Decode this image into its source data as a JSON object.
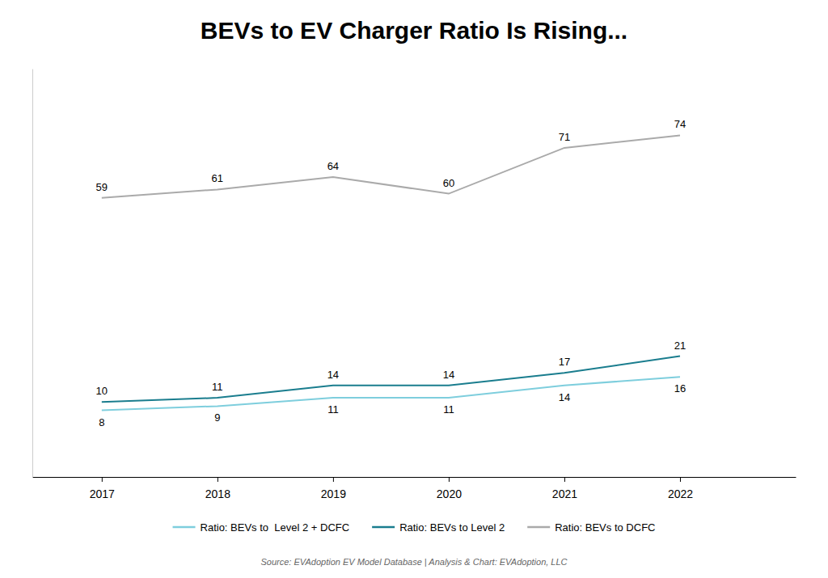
{
  "chart_data": {
    "type": "line",
    "title": "BEVs to EV Charger Ratio Is Rising...",
    "x": [
      2017,
      2018,
      2019,
      2020,
      2021,
      2022
    ],
    "series": [
      {
        "name": "Ratio: BEVs to DCFC",
        "color": "#aaaaaa",
        "values": [
          59,
          61,
          64,
          60,
          71,
          74
        ]
      },
      {
        "name": "Ratio: BEVs to Level 2",
        "color": "#1a7d8e",
        "values": [
          10,
          11,
          14,
          14,
          17,
          21
        ]
      },
      {
        "name": "Ratio: BEVs to  Level 2 + DCFC",
        "color": "#7ecedd",
        "values": [
          8,
          9,
          11,
          11,
          14,
          16
        ]
      }
    ],
    "xlim": [
      2016.4,
      2023.0
    ],
    "xticks": [
      2017,
      2018,
      2019,
      2020,
      2021,
      2022
    ],
    "ylim": [
      -8,
      90
    ],
    "tick_labels": "x",
    "grid": false,
    "legend": "bottom",
    "data_labels": true,
    "annotations": [
      "Source: EVAdoption EV Model Database | Analysis & Chart: EVAdoption, LLC"
    ]
  }
}
